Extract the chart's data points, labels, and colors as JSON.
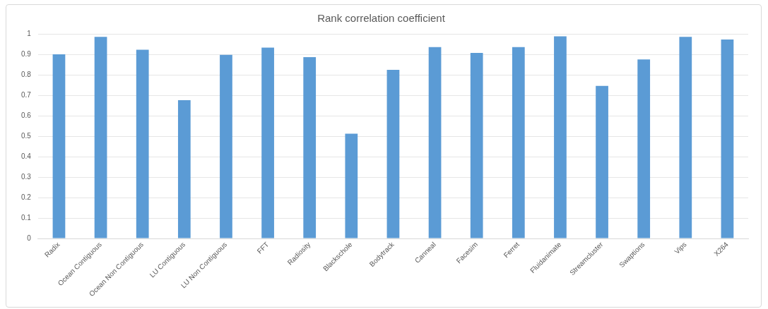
{
  "chart_data": {
    "type": "bar",
    "title": "Rank correlation coefficient",
    "categories": [
      "Radix",
      "Ocean Contiguous",
      "Ocean Non Contiguous",
      "LU Contiguous",
      "LU Non Contiguous",
      "FFT",
      "Radiosity",
      "Blackschole",
      "Bodytrack",
      "Canneal",
      "Facesim",
      "Ferret",
      "Fluidanimate",
      "Streamcluster",
      "Swaptions",
      "Vips",
      "X264"
    ],
    "values": [
      0.9,
      0.985,
      0.922,
      0.676,
      0.897,
      0.933,
      0.886,
      0.512,
      0.824,
      0.935,
      0.907,
      0.935,
      0.988,
      0.746,
      0.875,
      0.985,
      0.972
    ],
    "color": "#5b9bd5",
    "ylim": [
      0,
      1
    ],
    "yticks": [
      0,
      0.1,
      0.2,
      0.3,
      0.4,
      0.5,
      0.6,
      0.7,
      0.8,
      0.9,
      1
    ],
    "grid": "y"
  }
}
